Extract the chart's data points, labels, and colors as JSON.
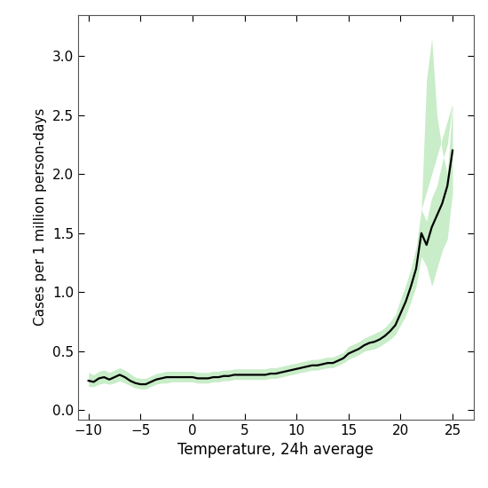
{
  "title": "",
  "xlabel": "Temperature, 24h average",
  "ylabel": "Cases per 1 million person-days",
  "xlim": [
    -11,
    27
  ],
  "ylim": [
    -0.08,
    3.35
  ],
  "xticks": [
    -10,
    -5,
    0,
    5,
    10,
    15,
    20,
    25
  ],
  "yticks": [
    0.0,
    0.5,
    1.0,
    1.5,
    2.0,
    2.5,
    3.0
  ],
  "line_color": "#000000",
  "fill_color": "#c8edc8",
  "line_width": 1.6,
  "background_color": "#ffffff",
  "x": [
    -10,
    -9.5,
    -9,
    -8.5,
    -8,
    -7.5,
    -7,
    -6.5,
    -6,
    -5.5,
    -5,
    -4.5,
    -4,
    -3.5,
    -3,
    -2.5,
    -2,
    -1.5,
    -1,
    -0.5,
    0,
    0.5,
    1,
    1.5,
    2,
    2.5,
    3,
    3.5,
    4,
    4.5,
    5,
    5.5,
    6,
    6.5,
    7,
    7.5,
    8,
    8.5,
    9,
    9.5,
    10,
    10.5,
    11,
    11.5,
    12,
    12.5,
    13,
    13.5,
    14,
    14.5,
    15,
    15.5,
    16,
    16.5,
    17,
    17.5,
    18,
    18.5,
    19,
    19.5,
    20,
    20.5,
    21,
    21.5,
    22,
    22.5,
    23,
    23.5,
    24,
    24.5,
    25
  ],
  "y": [
    0.25,
    0.24,
    0.27,
    0.28,
    0.26,
    0.28,
    0.3,
    0.28,
    0.25,
    0.23,
    0.22,
    0.22,
    0.24,
    0.26,
    0.27,
    0.28,
    0.28,
    0.28,
    0.28,
    0.28,
    0.28,
    0.27,
    0.27,
    0.27,
    0.28,
    0.28,
    0.29,
    0.29,
    0.3,
    0.3,
    0.3,
    0.3,
    0.3,
    0.3,
    0.3,
    0.31,
    0.31,
    0.32,
    0.33,
    0.34,
    0.35,
    0.36,
    0.37,
    0.38,
    0.38,
    0.39,
    0.4,
    0.4,
    0.42,
    0.44,
    0.48,
    0.5,
    0.52,
    0.55,
    0.57,
    0.58,
    0.6,
    0.63,
    0.67,
    0.72,
    0.82,
    0.92,
    1.05,
    1.2,
    1.5,
    1.4,
    1.55,
    1.65,
    1.75,
    1.9,
    2.2
  ],
  "y_lower": [
    0.2,
    0.2,
    0.22,
    0.23,
    0.22,
    0.23,
    0.25,
    0.23,
    0.21,
    0.19,
    0.18,
    0.18,
    0.2,
    0.22,
    0.23,
    0.23,
    0.24,
    0.24,
    0.24,
    0.24,
    0.24,
    0.23,
    0.23,
    0.23,
    0.24,
    0.24,
    0.25,
    0.25,
    0.26,
    0.26,
    0.26,
    0.26,
    0.26,
    0.26,
    0.26,
    0.27,
    0.27,
    0.28,
    0.29,
    0.3,
    0.31,
    0.32,
    0.33,
    0.34,
    0.34,
    0.35,
    0.36,
    0.36,
    0.38,
    0.4,
    0.43,
    0.45,
    0.47,
    0.5,
    0.51,
    0.52,
    0.54,
    0.57,
    0.6,
    0.64,
    0.72,
    0.8,
    0.92,
    1.05,
    1.3,
    1.22,
    1.32,
    1.42,
    1.52,
    1.62,
    1.85
  ],
  "y_upper": [
    0.32,
    0.3,
    0.33,
    0.34,
    0.32,
    0.34,
    0.36,
    0.34,
    0.31,
    0.28,
    0.27,
    0.27,
    0.29,
    0.31,
    0.32,
    0.33,
    0.33,
    0.33,
    0.33,
    0.33,
    0.33,
    0.32,
    0.32,
    0.32,
    0.33,
    0.33,
    0.34,
    0.34,
    0.35,
    0.35,
    0.35,
    0.35,
    0.35,
    0.35,
    0.35,
    0.36,
    0.36,
    0.37,
    0.38,
    0.39,
    0.4,
    0.41,
    0.42,
    0.43,
    0.43,
    0.44,
    0.45,
    0.45,
    0.47,
    0.49,
    0.54,
    0.56,
    0.58,
    0.61,
    0.63,
    0.65,
    0.67,
    0.7,
    0.75,
    0.81,
    0.94,
    1.06,
    1.2,
    1.38,
    1.7,
    1.6,
    1.8,
    1.9,
    2.1,
    2.25,
    2.6
  ],
  "x_ci_peak": [
    22.0,
    22.5,
    23.0,
    23.5,
    24.0,
    24.5,
    25.0
  ],
  "y_ci_peak_lower": [
    1.32,
    1.22,
    1.05,
    1.2,
    1.35,
    1.45,
    1.85
  ],
  "y_ci_peak_upper": [
    1.7,
    2.8,
    3.15,
    2.5,
    2.2,
    2.0,
    2.6
  ]
}
